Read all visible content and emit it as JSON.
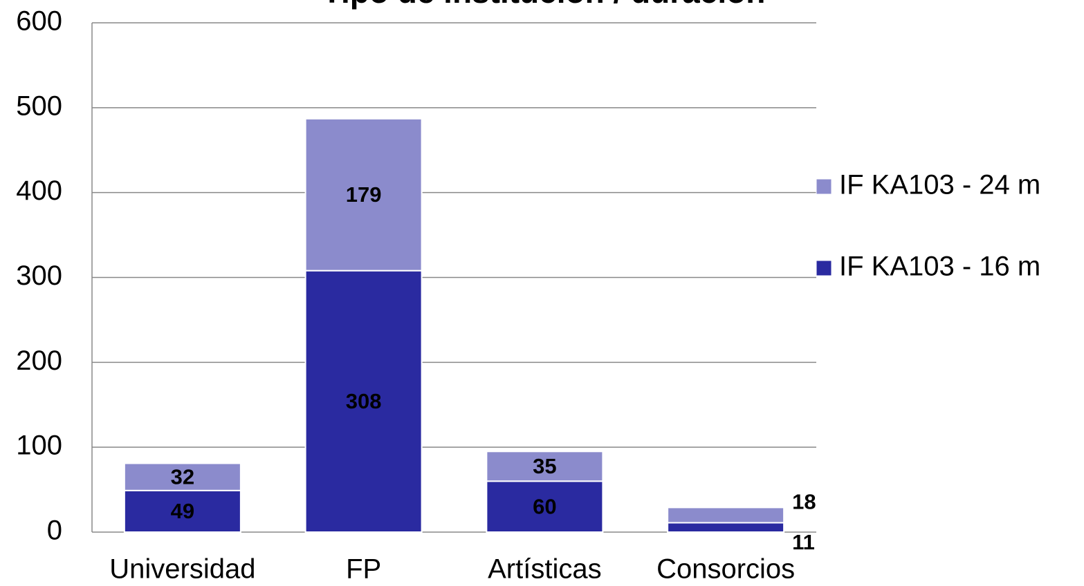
{
  "chart_data": {
    "type": "bar",
    "stacked": true,
    "title": "Tipo de institución / duración",
    "categories": [
      "Universidad",
      "FP",
      "Artísticas",
      "Consorcios"
    ],
    "series": [
      {
        "name": "IF KA103 - 16 m",
        "color": "#2a2aa0",
        "values": [
          49,
          308,
          60,
          11
        ]
      },
      {
        "name": "IF KA103 - 24 m",
        "color": "#8b8bcc",
        "values": [
          32,
          179,
          35,
          18
        ]
      }
    ],
    "ylim": [
      0,
      600
    ],
    "yticks": [
      0,
      100,
      200,
      300,
      400,
      500,
      600
    ],
    "grid": true,
    "legend": "right"
  }
}
